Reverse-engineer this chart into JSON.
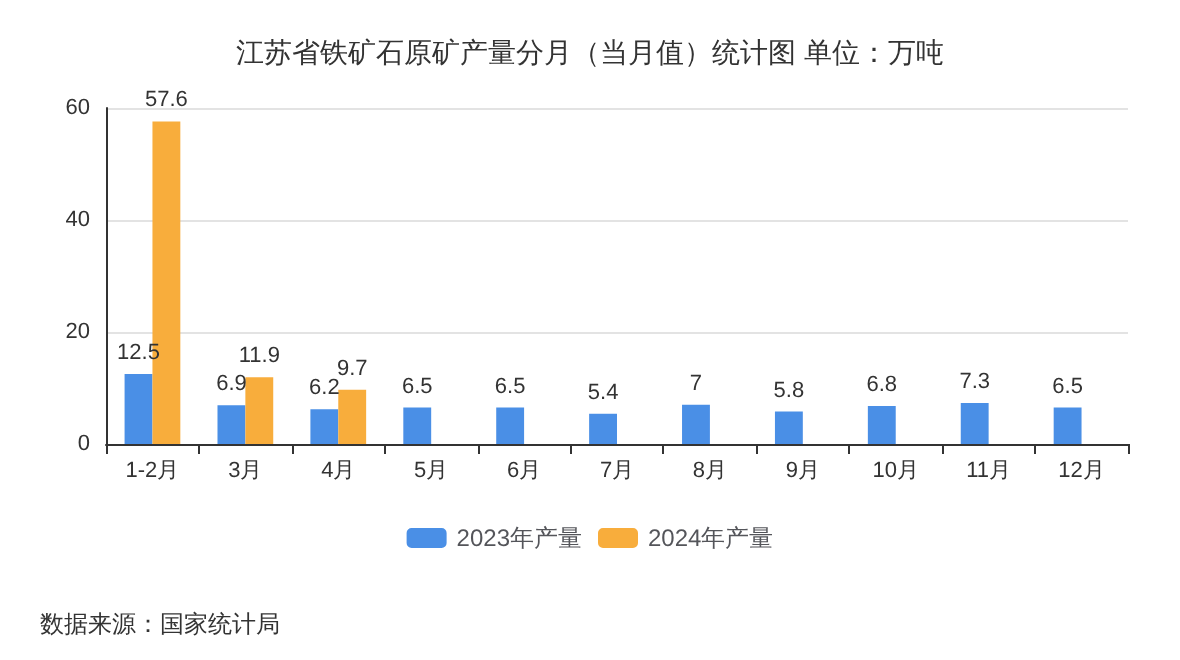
{
  "chart_data": {
    "type": "bar",
    "title": "江苏省铁矿石原矿产量分月（当月值）统计图 单位：万吨",
    "categories": [
      "1-2月",
      "3月",
      "4月",
      "5月",
      "6月",
      "7月",
      "8月",
      "9月",
      "10月",
      "11月",
      "12月"
    ],
    "series": [
      {
        "name": "2023年产量",
        "color": "#4a8fe6",
        "values": [
          12.5,
          6.9,
          6.2,
          6.5,
          6.5,
          5.4,
          7,
          5.8,
          6.8,
          7.3,
          6.5
        ]
      },
      {
        "name": "2024年产量",
        "color": "#f8ad3c",
        "values": [
          57.6,
          11.9,
          9.7,
          null,
          null,
          null,
          null,
          null,
          null,
          null,
          null
        ]
      }
    ],
    "ylim": [
      0,
      60
    ],
    "yticks": [
      0,
      20,
      40,
      60
    ],
    "grid": "y",
    "legend": "bottom",
    "data_labels": true,
    "annotations": [
      "数据来源：国家统计局"
    ]
  }
}
